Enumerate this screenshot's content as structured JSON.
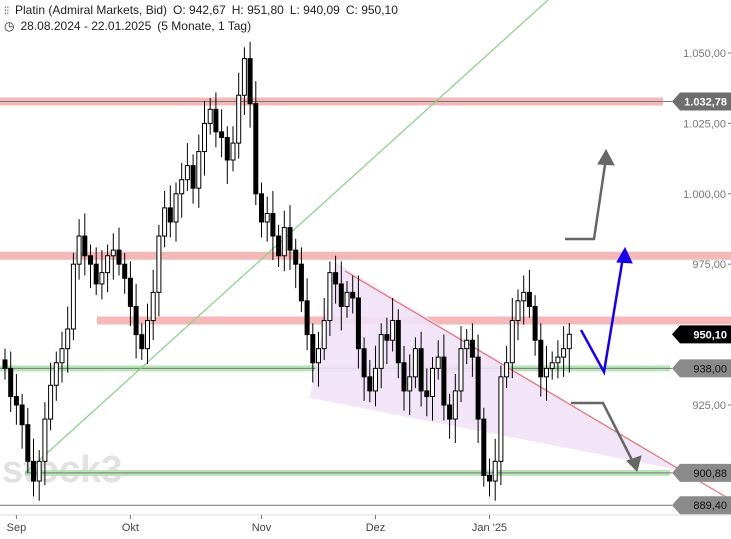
{
  "header": {
    "icon": "candlestick-chart-icon",
    "instrument": "Platin (Admiral Markets, Bid)",
    "open": "O: 942,67",
    "high": "H: 951,80",
    "low": "L: 940,09",
    "close": "C: 950,10",
    "clock_icon": "clock-icon",
    "range": "28.08.2024 - 22.01.2025",
    "period": "(5 Monate, 1 Tag)"
  },
  "watermark": "stock3",
  "chart_data": {
    "type": "candlestick",
    "title": "Platin (Admiral Markets, Bid)",
    "ylim": [
      885,
      1060
    ],
    "y_ticks": [
      {
        "value": 1050,
        "label": "1.050,00"
      },
      {
        "value": 1025,
        "label": "1.025,00"
      },
      {
        "value": 1000,
        "label": "1.000,00"
      },
      {
        "value": 975,
        "label": "975,00"
      },
      {
        "value": 925,
        "label": "925,00"
      }
    ],
    "x_ticks": [
      {
        "index": 2,
        "label": "Sep"
      },
      {
        "index": 22,
        "label": "Okt"
      },
      {
        "index": 45,
        "label": "Nov"
      },
      {
        "index": 65,
        "label": "Dez"
      },
      {
        "index": 85,
        "label": "Jan '25"
      }
    ],
    "closes": [
      938,
      928,
      925,
      918,
      905,
      898,
      905,
      920,
      932,
      940,
      945,
      952,
      975,
      985,
      978,
      975,
      968,
      972,
      978,
      980,
      975,
      970,
      960,
      950,
      945,
      955,
      965,
      985,
      995,
      990,
      1000,
      1005,
      1010,
      1002,
      1015,
      1025,
      1030,
      1022,
      1020,
      1012,
      1018,
      1035,
      1048,
      1032,
      1000,
      990,
      993,
      985,
      978,
      988,
      980,
      975,
      962,
      950,
      940,
      945,
      955,
      972,
      968,
      960,
      965,
      963,
      945,
      935,
      930,
      938,
      950,
      948,
      955,
      940,
      930,
      935,
      945,
      930,
      928,
      938,
      942,
      925,
      920,
      930,
      945,
      948,
      942,
      920,
      900,
      898,
      905,
      935,
      940,
      955,
      962,
      965,
      960,
      948,
      935,
      938,
      940,
      942,
      945,
      950.1
    ],
    "price_tags": [
      {
        "value": 1032.78,
        "label": "1.032,78",
        "style": "dark"
      },
      {
        "value": 950.1,
        "label": "950,10",
        "style": "current"
      },
      {
        "value": 938.0,
        "label": "938,00",
        "style": "gray"
      },
      {
        "value": 900.88,
        "label": "900,88",
        "style": "gray"
      },
      {
        "value": 889.4,
        "label": "889,40",
        "style": "gray"
      }
    ],
    "resistance_zones": [
      1032.78,
      978,
      955
    ],
    "support_zones": [
      938.0,
      900.88
    ],
    "colors": {
      "resistance": "#f4b8b8",
      "support": "#b9e3b9",
      "trend_up": "#8fd18f",
      "trend_down": "#e07a7a",
      "triangle": "#f1e2f7",
      "arrow_blue": "#1a00e6",
      "arrow_gray": "#666666",
      "current_tag": "#000000"
    }
  }
}
